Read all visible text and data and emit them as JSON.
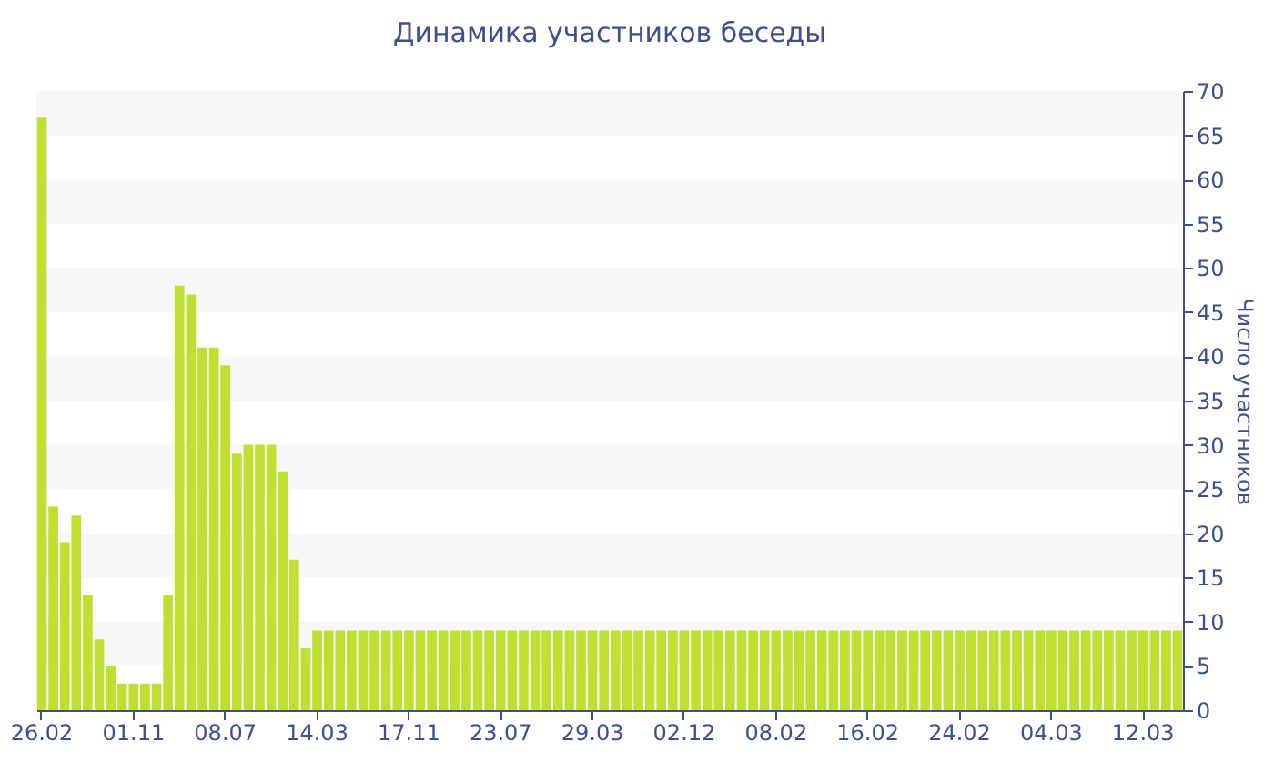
{
  "chart_data": {
    "type": "bar",
    "title": "Динамика участников беседы",
    "ylabel": "Число участников",
    "categories": [
      "26.02",
      null,
      null,
      null,
      null,
      null,
      null,
      null,
      "01.11",
      null,
      null,
      null,
      null,
      null,
      null,
      null,
      "08.07",
      null,
      null,
      null,
      null,
      null,
      null,
      null,
      "14.03",
      null,
      null,
      null,
      null,
      null,
      null,
      null,
      "17.11",
      null,
      null,
      null,
      null,
      null,
      null,
      null,
      "23.07",
      null,
      null,
      null,
      null,
      null,
      null,
      null,
      "29.03",
      null,
      null,
      null,
      null,
      null,
      null,
      null,
      "02.12",
      null,
      null,
      null,
      null,
      null,
      null,
      null,
      "08.02",
      null,
      null,
      null,
      null,
      null,
      null,
      null,
      "16.02",
      null,
      null,
      null,
      null,
      null,
      null,
      null,
      "24.02",
      null,
      null,
      null,
      null,
      null,
      null,
      null,
      "04.03",
      null,
      null,
      null,
      null,
      null,
      null,
      null,
      "12.03",
      null,
      null,
      null
    ],
    "values": [
      67,
      23,
      19,
      22,
      13,
      8,
      5,
      3,
      3,
      3,
      3,
      13,
      48,
      47,
      41,
      41,
      39,
      29,
      30,
      30,
      30,
      27,
      17,
      7,
      9,
      9,
      9,
      9,
      9,
      9,
      9,
      9,
      9,
      9,
      9,
      9,
      9,
      9,
      9,
      9,
      9,
      9,
      9,
      9,
      9,
      9,
      9,
      9,
      9,
      9,
      9,
      9,
      9,
      9,
      9,
      9,
      9,
      9,
      9,
      9,
      9,
      9,
      9,
      9,
      9,
      9,
      9,
      9,
      9,
      9,
      9,
      9,
      9,
      9,
      9,
      9,
      9,
      9,
      9,
      9,
      9,
      9,
      9,
      9,
      9,
      9,
      9,
      9,
      9,
      9,
      9,
      9,
      9,
      9,
      9,
      9,
      9,
      9,
      9,
      9
    ],
    "color": "#bfe030",
    "ylim": [
      0,
      70
    ],
    "yticks": [
      0,
      5,
      10,
      15,
      20,
      25,
      30,
      35,
      40,
      45,
      50,
      55,
      60,
      65,
      70
    ],
    "grid": false,
    "bands": [
      {
        "axis": "y",
        "from": 5,
        "to": 10,
        "color": "#f7f7f7"
      },
      {
        "axis": "y",
        "from": 15,
        "to": 20,
        "color": "#f7f7f7"
      },
      {
        "axis": "y",
        "from": 25,
        "to": 30,
        "color": "#f7f7f7"
      },
      {
        "axis": "y",
        "from": 35,
        "to": 40,
        "color": "#f7f7f7"
      },
      {
        "axis": "y",
        "from": 45,
        "to": 50,
        "color": "#f7f7f7"
      },
      {
        "axis": "y",
        "from": 55,
        "to": 60,
        "color": "#f7f7f7"
      },
      {
        "axis": "y",
        "from": 65,
        "to": 70,
        "color": "#f7f7f7"
      }
    ]
  }
}
